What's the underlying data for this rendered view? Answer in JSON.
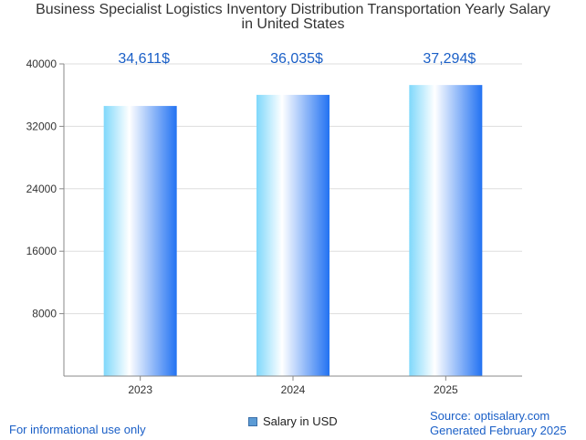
{
  "title_line1": "Business Specialist Logistics Inventory Distribution Transportation Yearly Salary",
  "title_line2": "in United States",
  "legend_label": "Salary in USD",
  "footer_note": "For informational use only",
  "source_text": "Source: optisalary.com",
  "generated_text": "Generated February 2025",
  "colors": {
    "bar_light": "#7fd8fb",
    "bar_white": "#ffffff",
    "bar_blue": "#2272f2",
    "value_label": "#1a5fc7",
    "grid": "#dddddd",
    "axis": "#888888"
  },
  "chart_data": {
    "type": "bar",
    "title": "Business Specialist Logistics Inventory Distribution Transportation Yearly Salary in United States",
    "categories": [
      "2023",
      "2024",
      "2025"
    ],
    "values": [
      34611,
      36035,
      37294
    ],
    "value_labels": [
      "34,611$",
      "36,035$",
      "37,294$"
    ],
    "ylim": [
      0,
      40000
    ],
    "yticks": [
      8000,
      16000,
      24000,
      32000,
      40000
    ],
    "ytick_labels": [
      "8000",
      "16000",
      "24000",
      "32000",
      "40000"
    ],
    "xlabel": "",
    "ylabel": "",
    "grid": true,
    "legend": "bottom-center",
    "series_name": "Salary in USD"
  }
}
